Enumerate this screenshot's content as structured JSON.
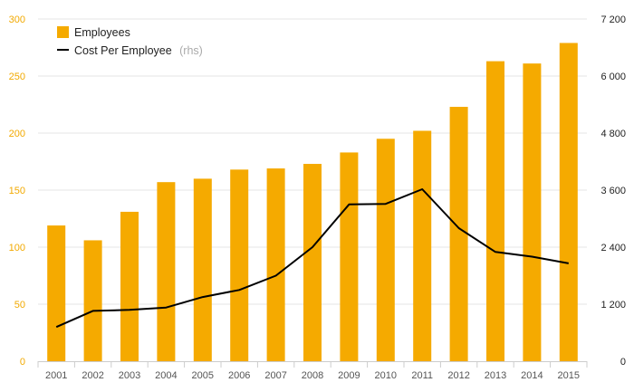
{
  "chart_data": {
    "type": "bar",
    "categories": [
      "2001",
      "2002",
      "2003",
      "2004",
      "2005",
      "2006",
      "2007",
      "2008",
      "2009",
      "2010",
      "2011",
      "2012",
      "2013",
      "2014",
      "2015"
    ],
    "series": [
      {
        "name": "Employees",
        "type": "bar",
        "axis": "left",
        "color": "#f5aa00",
        "values": [
          119,
          106,
          131,
          157,
          160,
          168,
          169,
          173,
          183,
          195,
          202,
          223,
          263,
          261,
          279
        ]
      },
      {
        "name": "Cost Per Employee",
        "name_suffix": "(rhs)",
        "type": "line",
        "axis": "right",
        "color": "#000000",
        "values": [
          720,
          1060,
          1080,
          1130,
          1350,
          1500,
          1800,
          2400,
          3300,
          3310,
          3620,
          2800,
          2300,
          2200,
          2060
        ]
      }
    ],
    "y_left": {
      "ylim": [
        0,
        300
      ],
      "ticks": [
        0,
        50,
        100,
        150,
        200,
        250,
        300
      ],
      "tick_labels": [
        "0",
        "50",
        "100",
        "150",
        "200",
        "250",
        "300"
      ],
      "color": "#f2a900"
    },
    "y_right": {
      "ylim": [
        0,
        7200
      ],
      "ticks": [
        0,
        1200,
        2400,
        3600,
        4800,
        6000,
        7200
      ],
      "tick_labels": [
        "0",
        "1 200",
        "2 400",
        "3 600",
        "4 800",
        "6 000",
        "7 200"
      ]
    },
    "grid": true,
    "legend_position": "top-left"
  }
}
